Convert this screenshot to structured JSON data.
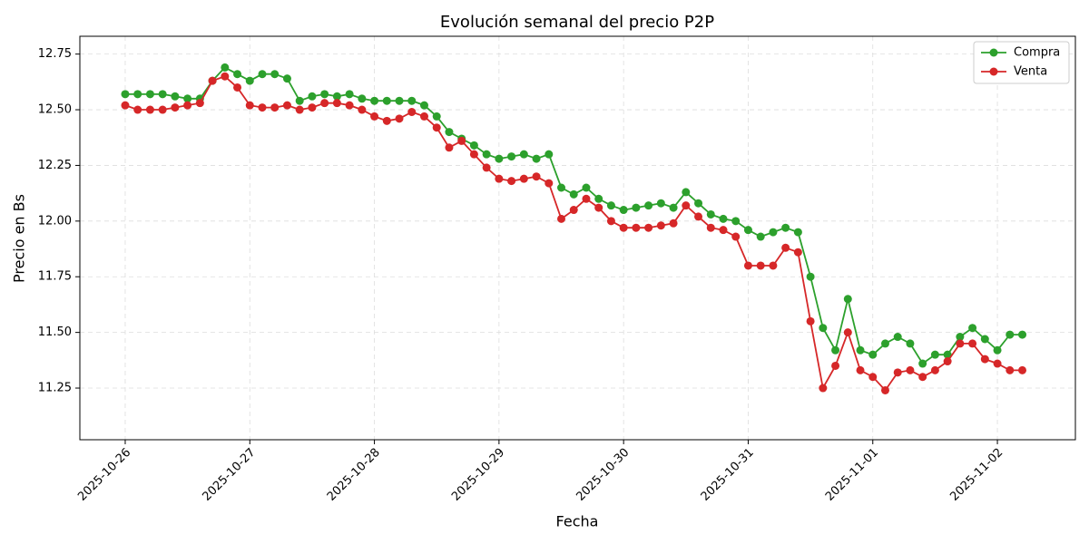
{
  "chart_data": {
    "type": "line",
    "title": "Evolución semanal del precio P2P",
    "xlabel": "Fecha",
    "ylabel": "Precio en Bs",
    "x": [
      20387,
      20387.1,
      20387.2,
      20387.3,
      20387.4,
      20387.5,
      20387.6,
      20387.7,
      20387.8,
      20387.9,
      20388,
      20388.1,
      20388.2,
      20388.3,
      20388.4,
      20388.5,
      20388.6,
      20388.7,
      20388.8,
      20388.9,
      20389,
      20389.1,
      20389.2,
      20389.3,
      20389.4,
      20389.5,
      20389.6,
      20389.7,
      20389.8,
      20389.9,
      20390,
      20390.1,
      20390.2,
      20390.3,
      20390.4,
      20390.5,
      20390.6,
      20390.7,
      20390.8,
      20390.9,
      20391,
      20391.1,
      20391.2,
      20391.3,
      20391.4,
      20391.5,
      20391.6,
      20391.7,
      20391.8,
      20391.9,
      20392,
      20392.1,
      20392.2,
      20392.3,
      20392.4,
      20392.5,
      20392.6,
      20392.7,
      20392.8,
      20392.9,
      20393,
      20393.1,
      20393.2,
      20393.3,
      20393.4,
      20393.5,
      20393.6,
      20393.7,
      20393.8,
      20393.9,
      20394,
      20394.1,
      20394.2
    ],
    "series": [
      {
        "name": "Compra",
        "color": "#2ca02c",
        "values": [
          12.57,
          12.57,
          12.57,
          12.57,
          12.56,
          12.55,
          12.55,
          12.63,
          12.69,
          12.66,
          12.63,
          12.66,
          12.66,
          12.64,
          12.54,
          12.56,
          12.57,
          12.56,
          12.57,
          12.55,
          12.54,
          12.54,
          12.54,
          12.54,
          12.52,
          12.47,
          12.4,
          12.37,
          12.34,
          12.3,
          12.28,
          12.29,
          12.3,
          12.28,
          12.3,
          12.15,
          12.12,
          12.15,
          12.1,
          12.07,
          12.05,
          12.06,
          12.07,
          12.08,
          12.06,
          12.13,
          12.08,
          12.03,
          12.01,
          12.0,
          11.96,
          11.93,
          11.95,
          11.97,
          11.95,
          11.75,
          11.52,
          11.42,
          11.65,
          11.42,
          11.4,
          11.45,
          11.48,
          11.45,
          11.36,
          11.4,
          11.4,
          11.48,
          11.52,
          11.47,
          11.42,
          11.49,
          11.49
        ]
      },
      {
        "name": "Venta",
        "color": "#d62728",
        "values": [
          12.52,
          12.5,
          12.5,
          12.5,
          12.51,
          12.52,
          12.53,
          12.63,
          12.65,
          12.6,
          12.52,
          12.51,
          12.51,
          12.52,
          12.5,
          12.51,
          12.53,
          12.53,
          12.52,
          12.5,
          12.47,
          12.45,
          12.46,
          12.49,
          12.47,
          12.42,
          12.33,
          12.36,
          12.3,
          12.24,
          12.19,
          12.18,
          12.19,
          12.2,
          12.17,
          12.01,
          12.05,
          12.1,
          12.06,
          12.0,
          11.97,
          11.97,
          11.97,
          11.98,
          11.99,
          12.07,
          12.02,
          11.97,
          11.96,
          11.93,
          11.8,
          11.8,
          11.8,
          11.88,
          11.86,
          11.55,
          11.25,
          11.35,
          11.5,
          11.33,
          11.3,
          11.24,
          11.32,
          11.33,
          11.3,
          11.33,
          11.37,
          11.45,
          11.45,
          11.38,
          11.36,
          11.33,
          11.33
        ]
      }
    ],
    "xlim": [
      20386.636,
      20394.626
    ],
    "xticks": [
      {
        "value": 20387,
        "label": "2025-10-26"
      },
      {
        "value": 20388,
        "label": "2025-10-27"
      },
      {
        "value": 20389,
        "label": "2025-10-28"
      },
      {
        "value": 20390,
        "label": "2025-10-29"
      },
      {
        "value": 20391,
        "label": "2025-10-30"
      },
      {
        "value": 20392,
        "label": "2025-10-31"
      },
      {
        "value": 20393,
        "label": "2025-11-01"
      },
      {
        "value": 20394,
        "label": "2025-11-02"
      }
    ],
    "ylim": [
      11.018,
      12.83
    ],
    "yticks": [
      11.25,
      {
        "value": 11.5,
        "label": "11.50"
      },
      11.75,
      {
        "value": 12,
        "label": "12.00"
      },
      12.25,
      {
        "value": 12.5,
        "label": "12.50"
      },
      12.75
    ],
    "grid": true,
    "legend": "upper right"
  }
}
